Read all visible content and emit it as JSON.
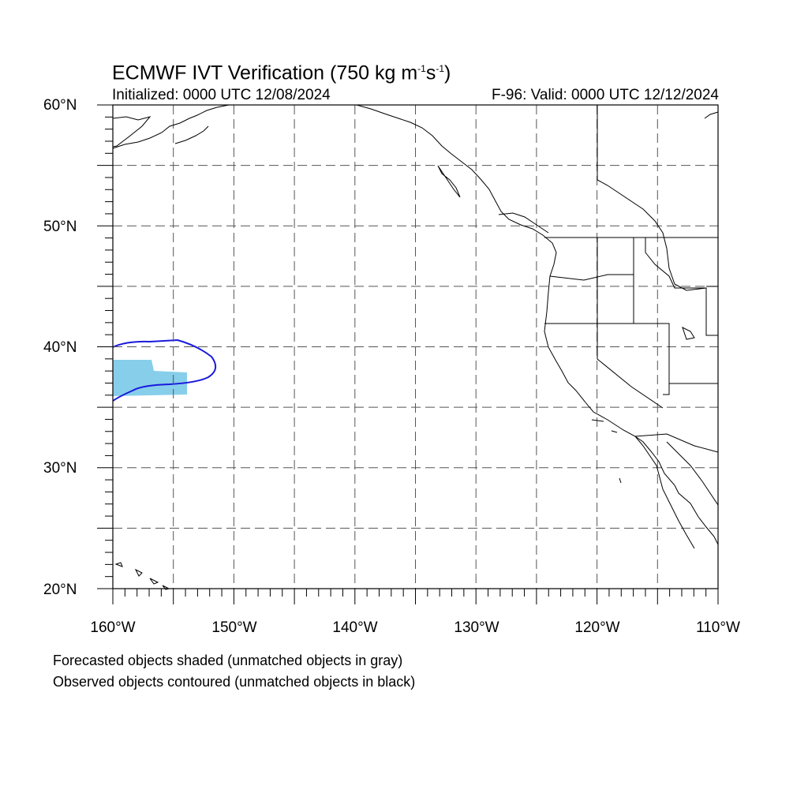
{
  "title": {
    "text_main": "ECMWF IVT Verification (750 kg m",
    "sup1": "-1",
    "mid": "s",
    "sup2": "-1",
    "close": ")"
  },
  "subtitle_left": "Initialized: 0000 UTC 12/08/2024",
  "subtitle_right": "F-96: Valid: 0000 UTC 12/12/2024",
  "lat_labels": [
    "60°N",
    "50°N",
    "40°N",
    "30°N",
    "20°N"
  ],
  "lon_labels": [
    "160°W",
    "150°W",
    "140°W",
    "130°W",
    "120°W",
    "110°W"
  ],
  "notes": [
    "Forecasted objects shaded (unmatched objects in gray)",
    "Observed objects contoured (unmatched objects in black)"
  ],
  "map": {
    "lon_range": [
      -160,
      -110
    ],
    "lat_range": [
      20,
      60
    ],
    "grid_spacing_deg": 5,
    "grid_style": "dashed",
    "forecast_object_color": "#87ceeb",
    "observed_contour_color": "#1a1adc",
    "coastline_color": "#000000"
  }
}
